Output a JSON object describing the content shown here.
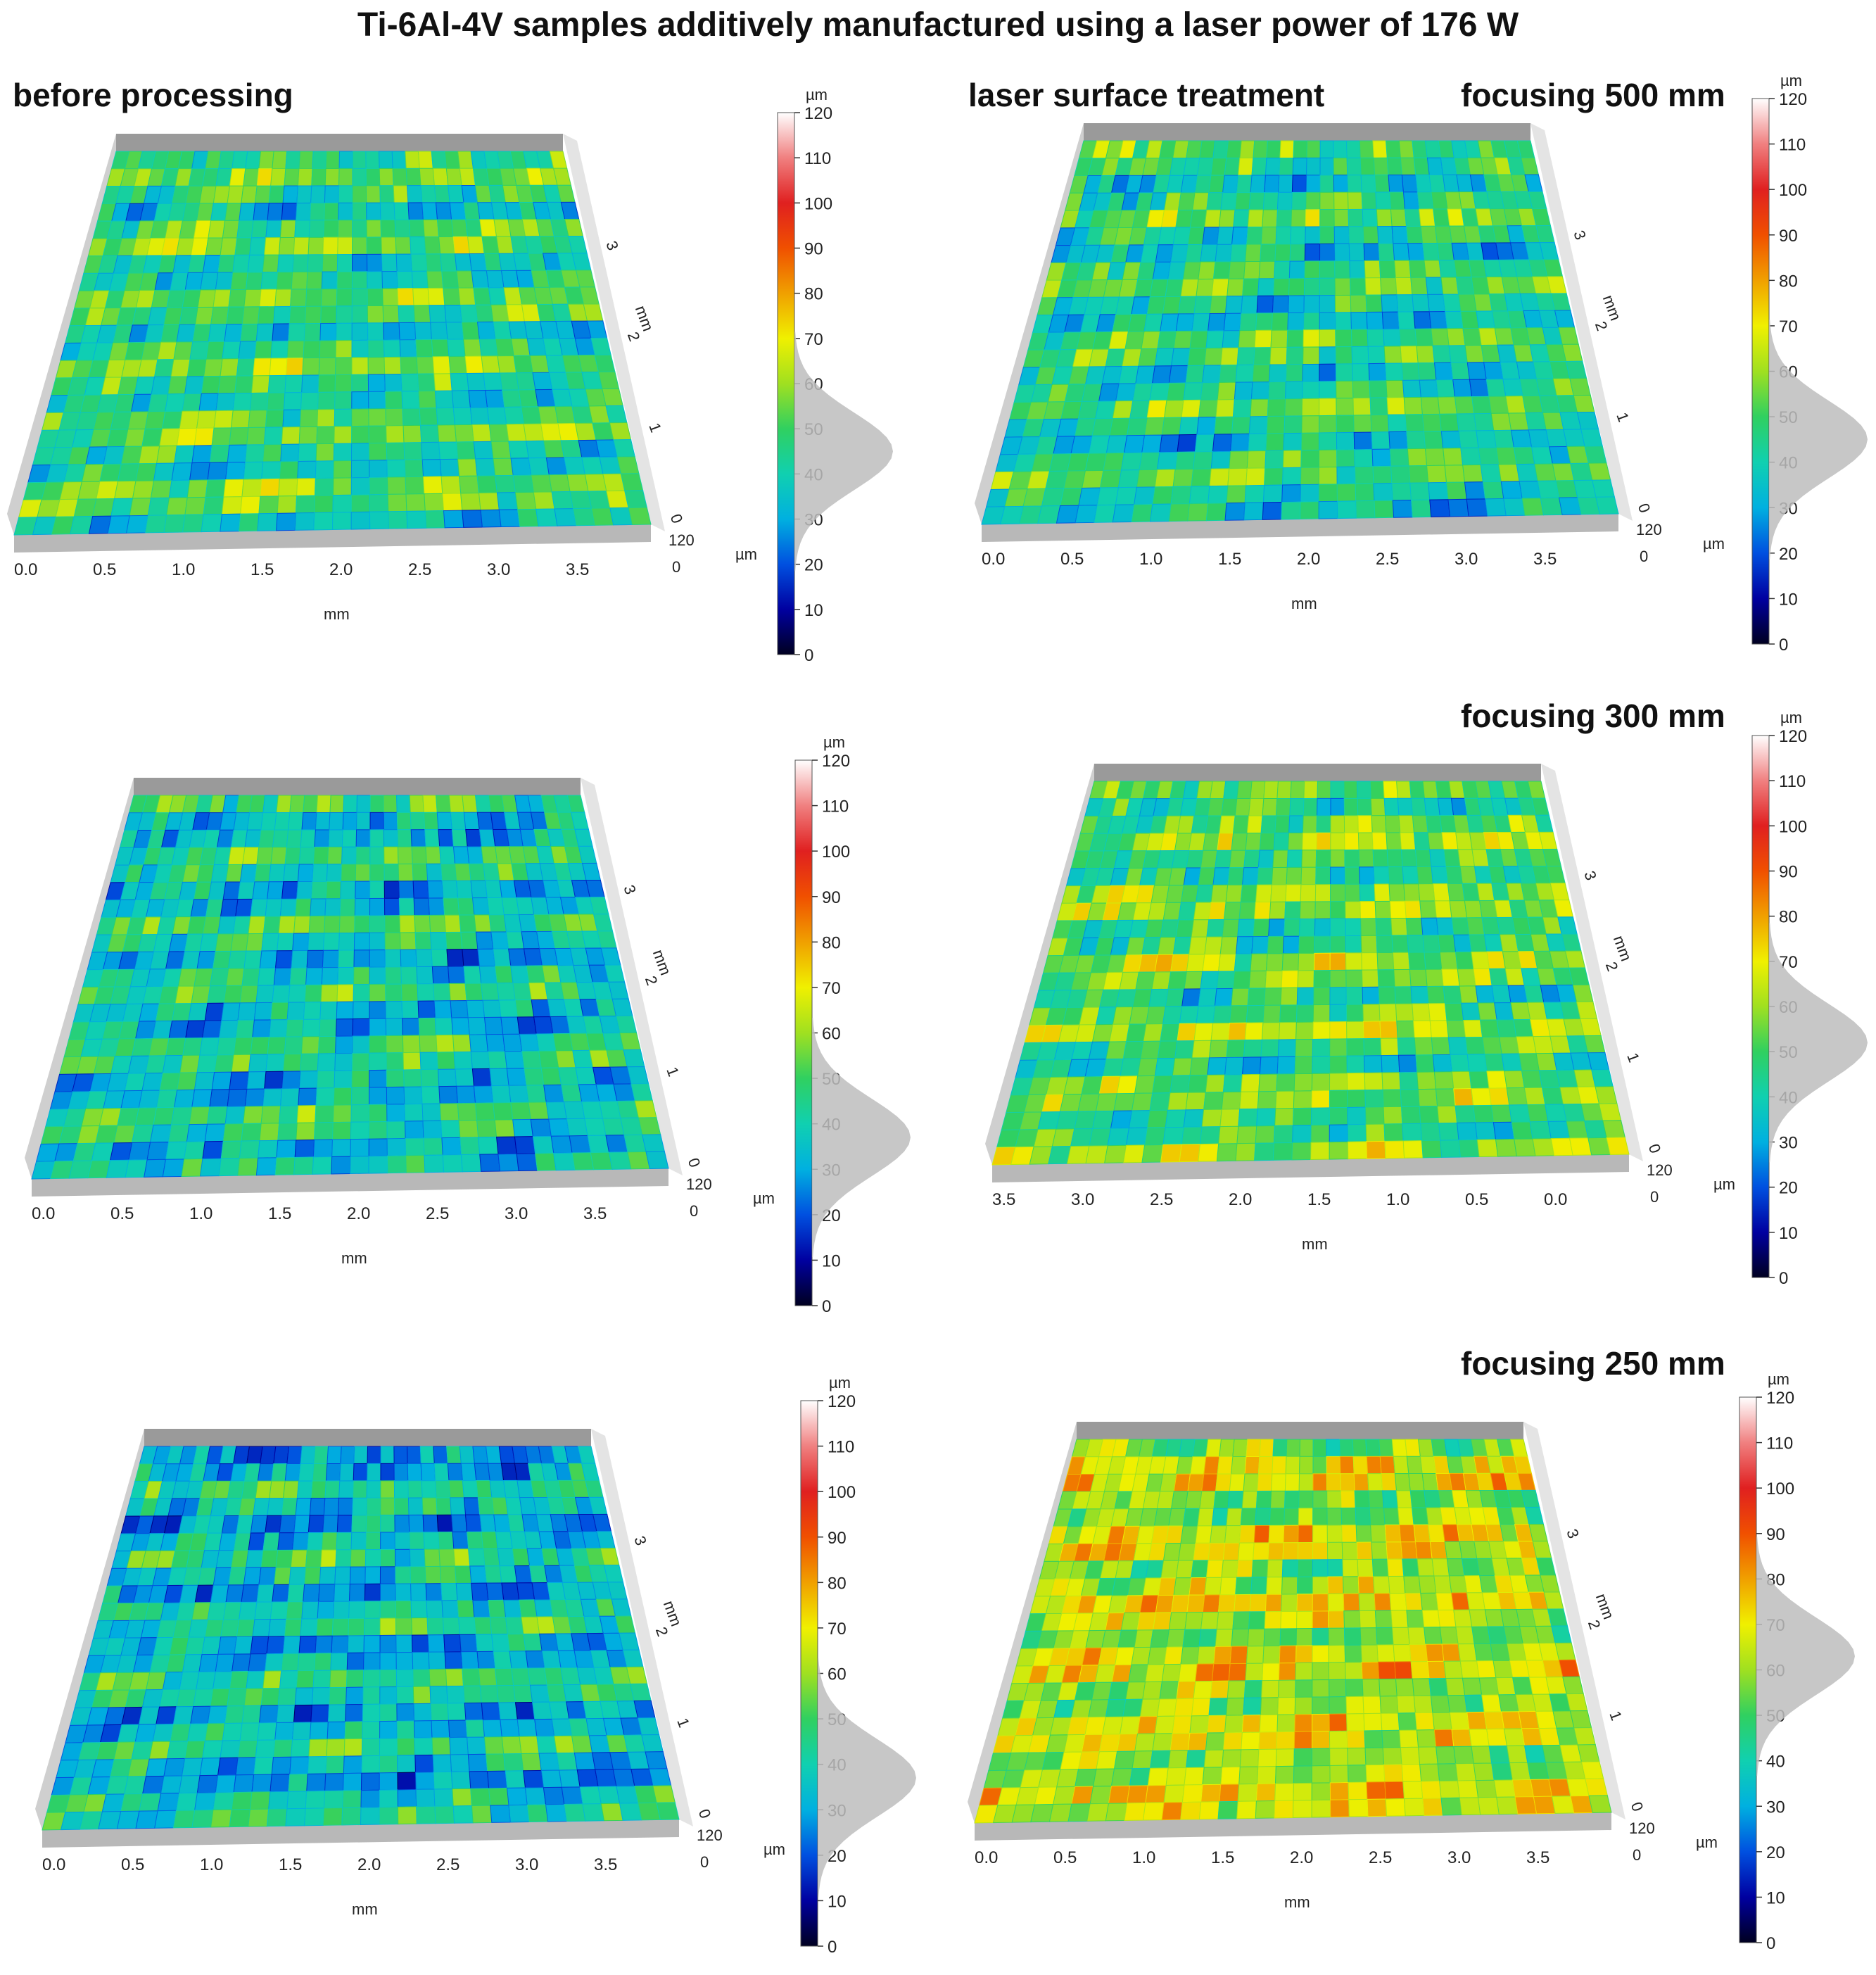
{
  "title": "Ti-6Al-4V samples additively manufactured using a laser power of 176 W",
  "headers": {
    "before": "before processing",
    "laser": "laser surface treatment",
    "f500": "focusing 500 mm",
    "f300": "focusing 300 mm",
    "f250": "focusing 250 mm"
  },
  "colors": {
    "map": [
      "#000020",
      "#0000a0",
      "#0050e0",
      "#00b0e0",
      "#10d0b0",
      "#30d060",
      "#a0e020",
      "#f0f000",
      "#f0a000",
      "#f05000",
      "#e02020",
      "#f08080",
      "#ffffff"
    ],
    "floor": "#b8b8b8",
    "wall": "#cfcfcf"
  },
  "chart_data": [
    {
      "type": "3d-surface",
      "panel": "before processing (row 1)",
      "xlabel": "mm",
      "ylabel": "mm",
      "zlabel": "µm",
      "x_ticks": [
        "0.0",
        "0.5",
        "1.0",
        "1.5",
        "2.0",
        "2.5",
        "3.0",
        "3.5"
      ],
      "y_ticks": [
        "0",
        "1",
        "2",
        "3"
      ],
      "z_ticks": [
        "120",
        "0"
      ],
      "colorbar": {
        "unit": "µm",
        "ticks": [
          "120",
          "110",
          "100",
          "90",
          "80",
          "70",
          "60",
          "50",
          "40",
          "30",
          "20",
          "10",
          "0"
        ],
        "range": [
          0,
          120
        ],
        "histogram_peak": 45
      },
      "surface_mean_height": 48
    },
    {
      "type": "3d-surface",
      "panel": "laser surface treatment, focusing 500 mm",
      "xlabel": "mm",
      "ylabel": "mm",
      "zlabel": "µm",
      "x_ticks": [
        "0.0",
        "0.5",
        "1.0",
        "1.5",
        "2.0",
        "2.5",
        "3.0",
        "3.5"
      ],
      "y_ticks": [
        "0",
        "1",
        "2",
        "3"
      ],
      "z_ticks": [
        "120",
        "0"
      ],
      "colorbar": {
        "unit": "µm",
        "ticks": [
          "120",
          "110",
          "100",
          "90",
          "80",
          "70",
          "60",
          "50",
          "40",
          "30",
          "20",
          "10",
          "0"
        ],
        "range": [
          0,
          120
        ],
        "histogram_peak": 45
      },
      "surface_mean_height": 45
    },
    {
      "type": "3d-surface",
      "panel": "before processing (row 2)",
      "xlabel": "mm",
      "ylabel": "mm",
      "zlabel": "µm",
      "x_ticks": [
        "0.0",
        "0.5",
        "1.0",
        "1.5",
        "2.0",
        "2.5",
        "3.0",
        "3.5"
      ],
      "y_ticks": [
        "0",
        "1",
        "2",
        "3"
      ],
      "z_ticks": [
        "120",
        "0"
      ],
      "colorbar": {
        "unit": "µm",
        "ticks": [
          "120",
          "110",
          "100",
          "90",
          "80",
          "70",
          "60",
          "50",
          "40",
          "30",
          "20",
          "10",
          "0"
        ],
        "range": [
          0,
          120
        ],
        "histogram_peak": 37
      },
      "surface_mean_height": 40
    },
    {
      "type": "3d-surface",
      "panel": "laser surface treatment, focusing 300 mm",
      "xlabel": "mm",
      "ylabel": "mm",
      "zlabel": "µm",
      "x_ticks": [
        "3.5",
        "3.0",
        "2.5",
        "2.0",
        "1.5",
        "1.0",
        "0.5",
        "0.0"
      ],
      "y_ticks": [
        "0",
        "1",
        "2",
        "3"
      ],
      "z_ticks": [
        "120",
        "0"
      ],
      "colorbar": {
        "unit": "µm",
        "ticks": [
          "120",
          "110",
          "100",
          "90",
          "80",
          "70",
          "60",
          "50",
          "40",
          "30",
          "20",
          "10",
          "0"
        ],
        "range": [
          0,
          120
        ],
        "histogram_peak": 52
      },
      "surface_mean_height": 52
    },
    {
      "type": "3d-surface",
      "panel": "before processing (row 3)",
      "xlabel": "mm",
      "ylabel": "mm",
      "zlabel": "µm",
      "x_ticks": [
        "0.0",
        "0.5",
        "1.0",
        "1.5",
        "2.0",
        "2.5",
        "3.0",
        "3.5"
      ],
      "y_ticks": [
        "0",
        "1",
        "2",
        "3"
      ],
      "z_ticks": [
        "120",
        "0"
      ],
      "colorbar": {
        "unit": "µm",
        "ticks": [
          "120",
          "110",
          "100",
          "90",
          "80",
          "70",
          "60",
          "50",
          "40",
          "30",
          "20",
          "10",
          "0"
        ],
        "range": [
          0,
          120
        ],
        "histogram_peak": 37
      },
      "surface_mean_height": 38
    },
    {
      "type": "3d-surface",
      "panel": "laser surface treatment, focusing 250 mm",
      "xlabel": "mm",
      "ylabel": "mm",
      "zlabel": "µm",
      "x_ticks": [
        "0.0",
        "0.5",
        "1.0",
        "1.5",
        "2.0",
        "2.5",
        "3.0",
        "3.5"
      ],
      "y_ticks": [
        "0",
        "1",
        "2",
        "3"
      ],
      "z_ticks": [
        "120",
        "0"
      ],
      "colorbar": {
        "unit": "µm",
        "ticks": [
          "120",
          "110",
          "100",
          "90",
          "80",
          "70",
          "60",
          "50",
          "40",
          "30",
          "20",
          "10",
          "0"
        ],
        "range": [
          0,
          120
        ],
        "histogram_peak": 63
      },
      "surface_mean_height": 65
    }
  ]
}
